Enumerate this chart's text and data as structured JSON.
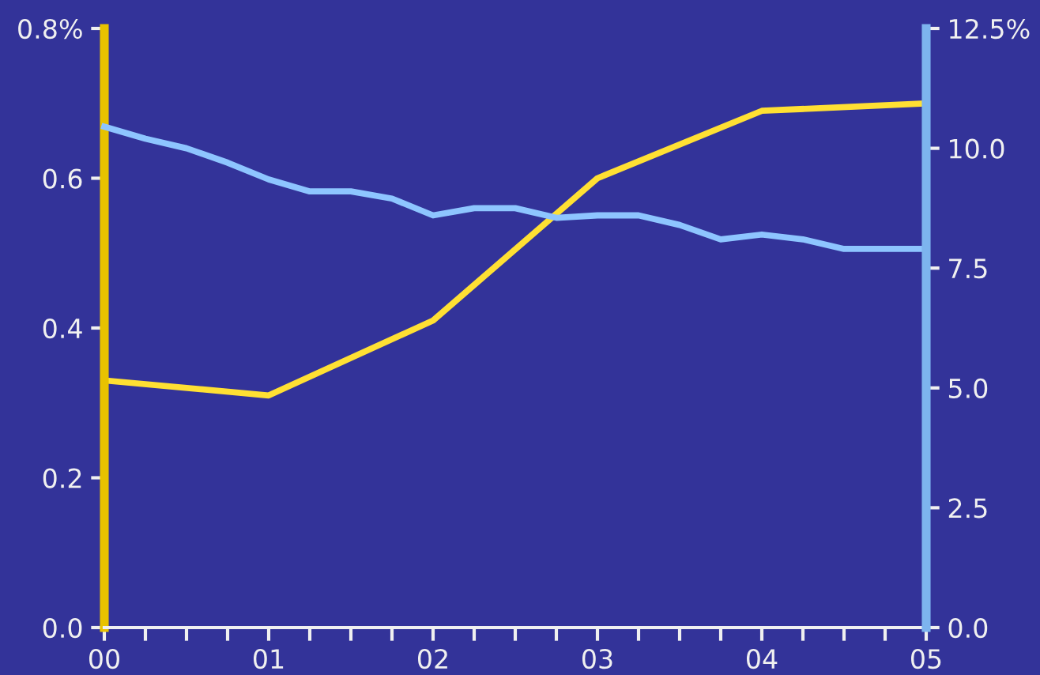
{
  "chart_data": {
    "type": "line",
    "xlim": [
      0,
      5
    ],
    "xticks": [
      {
        "value": 0,
        "label": "00"
      },
      {
        "value": 0.25,
        "label": null
      },
      {
        "value": 0.5,
        "label": null
      },
      {
        "value": 0.75,
        "label": null
      },
      {
        "value": 1,
        "label": "01"
      },
      {
        "value": 1.25,
        "label": null
      },
      {
        "value": 1.5,
        "label": null
      },
      {
        "value": 1.75,
        "label": null
      },
      {
        "value": 2,
        "label": "02"
      },
      {
        "value": 2.25,
        "label": null
      },
      {
        "value": 2.5,
        "label": null
      },
      {
        "value": 2.75,
        "label": null
      },
      {
        "value": 3,
        "label": "03"
      },
      {
        "value": 3.25,
        "label": null
      },
      {
        "value": 3.5,
        "label": null
      },
      {
        "value": 3.75,
        "label": null
      },
      {
        "value": 4,
        "label": "04"
      },
      {
        "value": 4.25,
        "label": null
      },
      {
        "value": 4.5,
        "label": null
      },
      {
        "value": 4.75,
        "label": null
      },
      {
        "value": 5,
        "label": "05"
      }
    ],
    "ylim": [
      0,
      0.8
    ],
    "yticks": [
      {
        "value": 0,
        "label": "0.0"
      },
      {
        "value": 0.2,
        "label": "0.2"
      },
      {
        "value": 0.4,
        "label": "0.4"
      },
      {
        "value": 0.6,
        "label": "0.6"
      },
      {
        "value": 0.8,
        "label": "0.8%"
      }
    ],
    "y2lim": [
      0,
      12.5
    ],
    "y2ticks": [
      {
        "value": 0,
        "label": "0.0"
      },
      {
        "value": 2.5,
        "label": "2.5"
      },
      {
        "value": 5,
        "label": "5.0"
      },
      {
        "value": 7.5,
        "label": "7.5"
      },
      {
        "value": 10,
        "label": "10.0"
      },
      {
        "value": 12.5,
        "label": "12.5%"
      }
    ],
    "grid": false,
    "legend": false,
    "marker": "none",
    "line_style": "solid",
    "series": [
      {
        "color": "#ffe033",
        "axis": "y",
        "x": [
          0,
          1,
          2,
          3,
          4,
          5
        ],
        "values": [
          0.33,
          0.31,
          0.41,
          0.6,
          0.69,
          0.7
        ]
      },
      {
        "color": "#8ec5ff",
        "axis": "y2",
        "x": [
          0,
          0.25,
          0.5,
          0.75,
          1,
          1.25,
          1.5,
          1.75,
          2,
          2.25,
          2.5,
          2.75,
          3,
          3.25,
          3.5,
          3.75,
          4,
          4.25,
          4.5,
          4.75,
          5
        ],
        "values": [
          10.45,
          10.2,
          10.0,
          9.7,
          9.35,
          9.1,
          9.1,
          8.95,
          8.6,
          8.75,
          8.75,
          8.55,
          8.6,
          8.6,
          8.4,
          8.1,
          8.2,
          8.1,
          7.9,
          7.9,
          7.9
        ]
      }
    ]
  }
}
